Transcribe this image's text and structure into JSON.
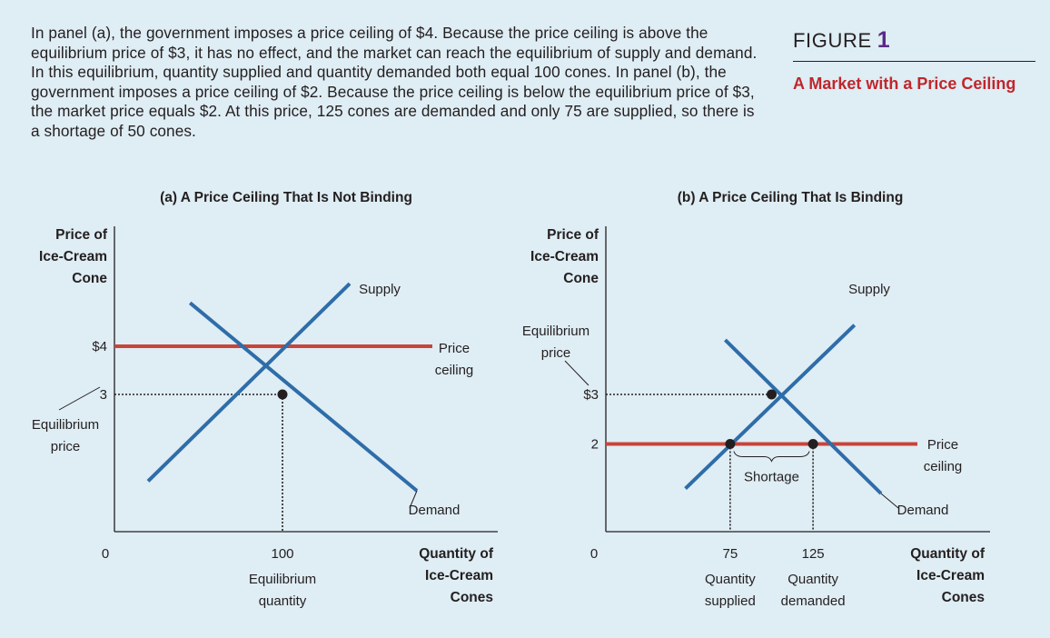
{
  "caption": "In panel (a), the government imposes a price ceiling of $4. Because the price ceiling is above the equilibrium price of $3, it has no effect, and the market can reach the equilibrium of supply and demand. In this equilibrium, quantity supplied and quantity demanded both equal 100 cones. In panel (b), the government imposes a price ceiling of $2. Because the price ceiling is below the equilibrium price of $3, the market price equals $2. At this price, 125 cones are demanded and only 75 are supplied, so there is a shortage of 50 cones.",
  "figure": {
    "label": "FIGURE",
    "number": "1",
    "title": "A Market with a Price Ceiling"
  },
  "colors": {
    "background": "#dfedf4",
    "curve": "#2e6da9",
    "ceiling": "#c8453a",
    "title_red": "#c0262c",
    "figure_num": "#5b2a86"
  },
  "chart_data": [
    {
      "type": "line",
      "panel_title": "(a) A Price Ceiling That Is Not Binding",
      "ylabel": [
        "Price of",
        "Ice-Cream",
        "Cone"
      ],
      "xlabel": [
        "Quantity of",
        "Ice-Cream",
        "Cones"
      ],
      "origin_label": "0",
      "y_ticks": [
        {
          "value": 4,
          "label": "$4"
        },
        {
          "value": 3,
          "label": "3"
        }
      ],
      "x_ticks": [
        {
          "value": 100,
          "label": "100"
        }
      ],
      "x_tick_notes": [
        {
          "value": 100,
          "lines": [
            "Equilibrium",
            "quantity"
          ]
        }
      ],
      "y_annotation": {
        "value": 3,
        "lines": [
          "Equilibrium",
          "price"
        ]
      },
      "series": [
        {
          "name": "Supply",
          "points": [
            [
              20,
              1.2
            ],
            [
              140,
              5.3
            ]
          ]
        },
        {
          "name": "Demand",
          "points": [
            [
              45,
              4.9
            ],
            [
              180,
              1.0
            ]
          ]
        }
      ],
      "price_ceiling": {
        "value": 4,
        "label": [
          "Price",
          "ceiling"
        ]
      },
      "equilibrium": {
        "x": 100,
        "y": 3
      }
    },
    {
      "type": "line",
      "panel_title": "(b) A Price Ceiling That Is Binding",
      "ylabel": [
        "Price of",
        "Ice-Cream",
        "Cone"
      ],
      "xlabel": [
        "Quantity of",
        "Ice-Cream",
        "Cones"
      ],
      "origin_label": "0",
      "y_ticks": [
        {
          "value": 3,
          "label": "$3"
        },
        {
          "value": 2,
          "label": "2"
        }
      ],
      "x_ticks": [
        {
          "value": 75,
          "label": "75"
        },
        {
          "value": 125,
          "label": "125"
        }
      ],
      "x_tick_notes": [
        {
          "value": 75,
          "lines": [
            "Quantity",
            "supplied"
          ]
        },
        {
          "value": 125,
          "lines": [
            "Quantity",
            "demanded"
          ]
        }
      ],
      "y_annotation": {
        "value": 3,
        "lines": [
          "Equilibrium",
          "price"
        ]
      },
      "series": [
        {
          "name": "Supply",
          "points": [
            [
              48,
              1.1
            ],
            [
              150,
              4.4
            ]
          ]
        },
        {
          "name": "Demand",
          "points": [
            [
              72,
              4.1
            ],
            [
              166,
              1.0
            ]
          ]
        }
      ],
      "price_ceiling": {
        "value": 2,
        "label": [
          "Price",
          "ceiling"
        ]
      },
      "equilibrium": {
        "x": 100,
        "y": 3
      },
      "shortage": {
        "from": 75,
        "to": 125,
        "label": "Shortage"
      }
    }
  ]
}
